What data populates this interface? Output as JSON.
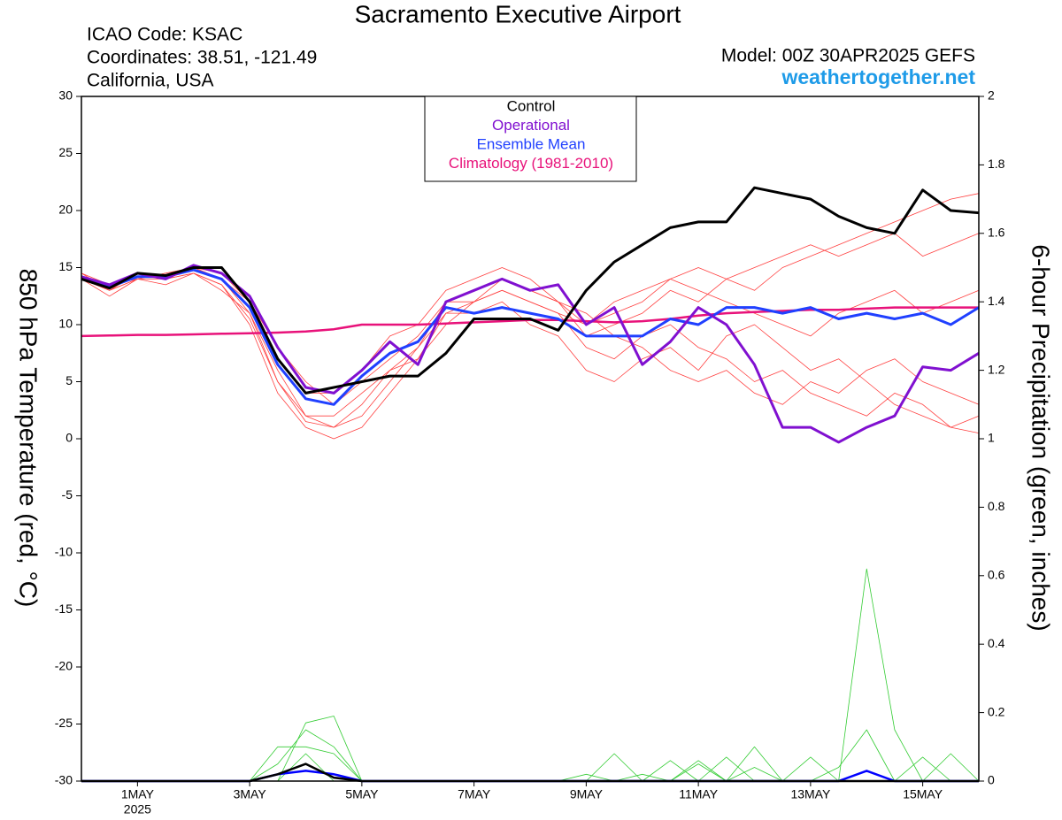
{
  "chart_data": {
    "type": "line",
    "title": "Sacramento Executive Airport",
    "info": [
      "ICAO Code: KSAC",
      "Coordinates: 38.51, -121.49",
      "California, USA"
    ],
    "model": "Model: 00Z 30APR2025 GEFS",
    "source": "weathertogether.net",
    "ylabel": "850 hPa Temperature (red, °C)",
    "y2label": "6-hour Precipitation (green, inches)",
    "year_label": "2025",
    "x": [
      0,
      0.5,
      1,
      1.5,
      2,
      2.5,
      3,
      3.5,
      4,
      4.5,
      5,
      5.5,
      6,
      6.5,
      7,
      7.5,
      8,
      8.5,
      9,
      9.5,
      10,
      10.5,
      11,
      11.5,
      12,
      12.5,
      13,
      13.5,
      14,
      14.5,
      15,
      15.5,
      16
    ],
    "xlim": [
      0,
      16
    ],
    "xticks": [
      {
        "value": 1,
        "label": "1MAY"
      },
      {
        "value": 3,
        "label": "3MAY"
      },
      {
        "value": 5,
        "label": "5MAY"
      },
      {
        "value": 7,
        "label": "7MAY"
      },
      {
        "value": 9,
        "label": "9MAY"
      },
      {
        "value": 11,
        "label": "11MAY"
      },
      {
        "value": 13,
        "label": "13MAY"
      },
      {
        "value": 15,
        "label": "15MAY"
      }
    ],
    "ylim": [
      -30,
      30
    ],
    "yticks": [
      -30,
      -25,
      -20,
      -15,
      -10,
      -5,
      0,
      5,
      10,
      15,
      20,
      25,
      30
    ],
    "y2lim": [
      0,
      2
    ],
    "y2ticks": [
      0,
      0.2,
      0.4,
      0.6,
      0.8,
      1,
      1.2,
      1.4,
      1.6,
      1.8,
      2
    ],
    "legend": "top-center",
    "series": [
      {
        "color": "#ff4040",
        "values": [
          14,
          13,
          14,
          14.5,
          15,
          14,
          11,
          5,
          2,
          1,
          3,
          6,
          8,
          12,
          13,
          14,
          13,
          12,
          10,
          11,
          12,
          14,
          15,
          14,
          13,
          15,
          16,
          17,
          18,
          19,
          20,
          21,
          21.5
        ]
      },
      {
        "color": "#ff4040",
        "values": [
          14,
          13.5,
          14.5,
          14,
          14.5,
          13.5,
          10,
          4,
          1,
          0,
          1,
          4,
          7,
          10,
          12,
          13,
          12,
          11,
          8,
          7,
          9,
          10,
          8,
          7,
          5,
          6,
          4,
          3,
          2,
          4,
          3,
          1,
          2
        ]
      },
      {
        "color": "#ff4040",
        "values": [
          14.5,
          13,
          14,
          14.5,
          15,
          14.5,
          12,
          7,
          4,
          4,
          6,
          9,
          10,
          13,
          14,
          15,
          14,
          12,
          9,
          10,
          11,
          13,
          12,
          14,
          15,
          16,
          17,
          16,
          17,
          18,
          16,
          17,
          18
        ]
      },
      {
        "color": "#ff4040",
        "values": [
          14,
          12.5,
          14,
          13.5,
          14.5,
          13,
          11,
          6,
          2,
          2,
          4,
          6,
          7,
          11,
          11,
          12,
          10,
          9,
          6,
          5,
          7,
          8,
          6,
          9,
          10,
          8,
          6,
          7,
          5,
          3,
          2,
          1,
          0.5
        ]
      },
      {
        "color": "#ff4040",
        "values": [
          14,
          13,
          14.5,
          14,
          15,
          14,
          12,
          8,
          5,
          3,
          5,
          7,
          9,
          12,
          12,
          13,
          12,
          11,
          10,
          12,
          13,
          14,
          13,
          12,
          11,
          10,
          9,
          11,
          12,
          13,
          11,
          12,
          13
        ]
      },
      {
        "color": "#ff4040",
        "values": [
          14.5,
          13.5,
          14,
          14,
          14.5,
          13.5,
          10.5,
          5,
          1.5,
          1,
          2,
          5,
          8,
          11,
          12,
          14,
          13,
          12,
          11,
          9,
          8,
          6,
          5,
          6,
          4,
          3,
          5,
          4,
          6,
          7,
          5,
          4,
          3
        ]
      },
      {
        "color": "#33cc33",
        "axis": "y2",
        "values": [
          0,
          0,
          0,
          0,
          0,
          0,
          0,
          0.05,
          0.15,
          0.1,
          0,
          0,
          0,
          0,
          0,
          0,
          0,
          0,
          0,
          0,
          0.02,
          0,
          0.06,
          0,
          0.1,
          0,
          0,
          0,
          0.62,
          0.15,
          0,
          0.08,
          0
        ]
      },
      {
        "color": "#33cc33",
        "axis": "y2",
        "values": [
          0,
          0,
          0,
          0,
          0,
          0,
          0,
          0,
          0.17,
          0.19,
          0,
          0,
          0,
          0,
          0,
          0,
          0,
          0,
          0,
          0.08,
          0,
          0,
          0,
          0.07,
          0,
          0,
          0.07,
          0,
          0,
          0,
          0,
          0,
          0
        ]
      },
      {
        "color": "#33cc33",
        "axis": "y2",
        "values": [
          0,
          0,
          0,
          0,
          0,
          0,
          0,
          0.1,
          0.1,
          0.08,
          0,
          0,
          0,
          0,
          0,
          0,
          0,
          0,
          0,
          0,
          0,
          0.06,
          0,
          0,
          0.04,
          0,
          0,
          0,
          0,
          0,
          0.07,
          0,
          0
        ]
      },
      {
        "color": "#33cc33",
        "axis": "y2",
        "values": [
          0,
          0,
          0,
          0,
          0,
          0,
          0,
          0,
          0.08,
          0,
          0,
          0,
          0,
          0,
          0,
          0,
          0,
          0,
          0.02,
          0,
          0,
          0,
          0.05,
          0,
          0,
          0,
          0,
          0.04,
          0.15,
          0,
          0,
          0,
          0
        ]
      },
      {
        "color": "#0000ff",
        "axis": "y2",
        "values": [
          0,
          0,
          0,
          0,
          0,
          0,
          0,
          0.02,
          0.03,
          0.02,
          0,
          0,
          0,
          0,
          0,
          0,
          0,
          0,
          0,
          0,
          0,
          0,
          0,
          0,
          0,
          0,
          0,
          0,
          0.03,
          0,
          0,
          0,
          0
        ]
      },
      {
        "color": "#000000",
        "axis": "y2",
        "values": [
          0,
          0,
          0,
          0,
          0,
          0,
          0,
          0.02,
          0.05,
          0.01,
          0,
          0,
          0,
          0,
          0,
          0,
          0,
          0,
          0,
          0,
          0,
          0,
          0,
          0,
          0,
          0,
          0,
          0,
          0,
          0,
          0,
          0,
          0
        ]
      },
      {
        "name": "Climatology (1981-2010)",
        "color": "#e8127a",
        "values": [
          9,
          9.05,
          9.1,
          9.1,
          9.15,
          9.2,
          9.25,
          9.3,
          9.4,
          9.6,
          10,
          10,
          10,
          10.1,
          10.2,
          10.3,
          10.4,
          10.4,
          10.3,
          10.2,
          10.3,
          10.5,
          10.8,
          11,
          11.1,
          11.2,
          11.3,
          11.3,
          11.4,
          11.5,
          11.5,
          11.5,
          11.5
        ]
      },
      {
        "name": "Ensemble Mean",
        "color": "#2040ff",
        "values": [
          14.2,
          13.3,
          14.2,
          14.2,
          14.8,
          14,
          11.5,
          6.5,
          3.5,
          3,
          5.5,
          7.5,
          8.5,
          11.5,
          11,
          11.5,
          11,
          10.5,
          9,
          9,
          9,
          10.5,
          10,
          11.5,
          11.5,
          11,
          11.5,
          10.5,
          11,
          10.5,
          11,
          10,
          11.5
        ]
      },
      {
        "name": "Operational",
        "color": "#8010d0",
        "values": [
          14.2,
          13.5,
          14.5,
          14,
          15.2,
          14.5,
          12.5,
          8,
          4.5,
          4,
          6,
          8.5,
          6.5,
          12,
          13,
          14,
          13,
          13.5,
          10,
          11.5,
          6.5,
          8.5,
          11.5,
          10,
          6.5,
          1,
          1,
          -0.3,
          1,
          2,
          6.3,
          6,
          7.5
        ]
      },
      {
        "name": "Control",
        "color": "#000000",
        "values": [
          14,
          13.2,
          14.5,
          14.3,
          15,
          15,
          12,
          7,
          4,
          4.5,
          5,
          5.5,
          5.5,
          7.5,
          10.5,
          10.5,
          10.5,
          9.5,
          13,
          15.5,
          17,
          18.5,
          19,
          19,
          22,
          21.5,
          21,
          19.5,
          18.5,
          18,
          21.8,
          20,
          19.8
        ]
      }
    ]
  }
}
